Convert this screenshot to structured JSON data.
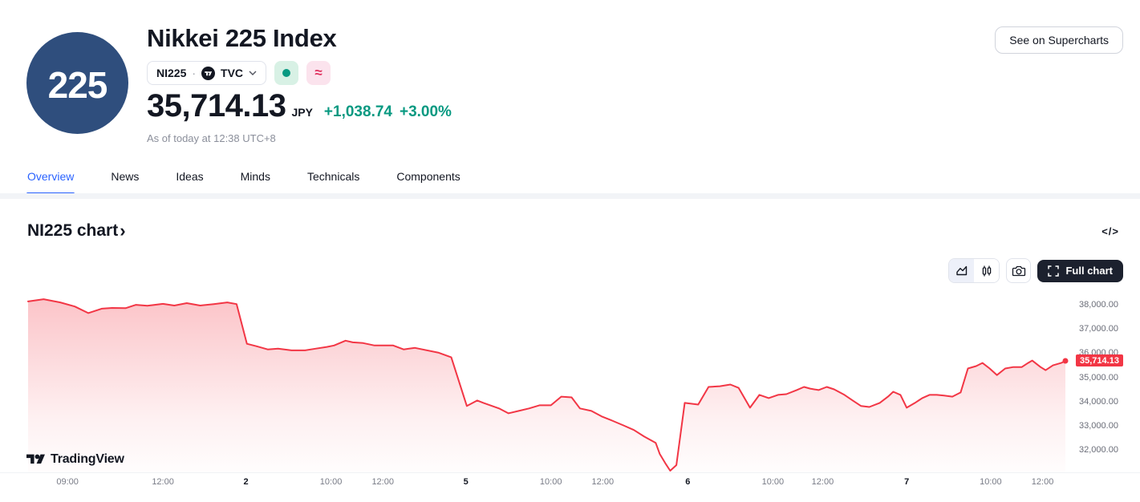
{
  "header": {
    "logo_text": "225",
    "title": "Nikkei 225 Index",
    "symbol": "NI225",
    "separator": "·",
    "exchange": "TVC",
    "similar_symbol": "≈",
    "price": "35,714.13",
    "currency": "JPY",
    "change_abs": "+1,038.74",
    "change_pct": "+3.00%",
    "as_of": "As of today at 12:38 UTC+8",
    "supercharts_button": "See on Supercharts"
  },
  "tabs": [
    {
      "label": "Overview",
      "active": true
    },
    {
      "label": "News",
      "active": false
    },
    {
      "label": "Ideas",
      "active": false
    },
    {
      "label": "Minds",
      "active": false
    },
    {
      "label": "Technicals",
      "active": false
    },
    {
      "label": "Components",
      "active": false
    }
  ],
  "chart_section": {
    "title": "NI225 chart",
    "chevron": "›",
    "embed_icon": "</>",
    "full_chart_button": "Full chart",
    "attribution": "TradingView"
  },
  "colors": {
    "accent_blue": "#2962ff",
    "up_green": "#089981",
    "down_red": "#f23645",
    "logo_navy": "#2f4e7d",
    "text_primary": "#131722",
    "text_secondary": "#787b86",
    "border": "#e0e3eb"
  },
  "chart_data": {
    "type": "area",
    "title": "NI225 chart",
    "symbol": "NI225",
    "xlabel": "",
    "ylabel": "",
    "grid": false,
    "legend": "none",
    "y_axis_side": "right",
    "line_color": "#f23645",
    "current_price": 35714.13,
    "current_price_label": "35,714.13",
    "ylim": [
      31100,
      38400
    ],
    "y_ticks": [
      {
        "value": 38000,
        "label": "38,000.00"
      },
      {
        "value": 37000,
        "label": "37,000.00"
      },
      {
        "value": 36000,
        "label": "36,000.00"
      },
      {
        "value": 35000,
        "label": "35,000.00"
      },
      {
        "value": 34000,
        "label": "34,000.00"
      },
      {
        "value": 33000,
        "label": "33,000.00"
      },
      {
        "value": 32000,
        "label": "32,000.00"
      }
    ],
    "x_ticks": [
      {
        "label": "09:00",
        "pos": 3.8,
        "day": false
      },
      {
        "label": "12:00",
        "pos": 13.0,
        "day": false
      },
      {
        "label": "2",
        "pos": 21.0,
        "day": true
      },
      {
        "label": "10:00",
        "pos": 29.2,
        "day": false
      },
      {
        "label": "12:00",
        "pos": 34.2,
        "day": false
      },
      {
        "label": "5",
        "pos": 42.2,
        "day": true
      },
      {
        "label": "10:00",
        "pos": 50.4,
        "day": false
      },
      {
        "label": "12:00",
        "pos": 55.4,
        "day": false
      },
      {
        "label": "6",
        "pos": 63.6,
        "day": true
      },
      {
        "label": "10:00",
        "pos": 71.8,
        "day": false
      },
      {
        "label": "12:00",
        "pos": 76.6,
        "day": false
      },
      {
        "label": "7",
        "pos": 84.7,
        "day": true
      },
      {
        "label": "10:00",
        "pos": 92.8,
        "day": false
      },
      {
        "label": "12:00",
        "pos": 97.8,
        "day": false
      }
    ],
    "points": [
      [
        0,
        38170
      ],
      [
        1.5,
        38260
      ],
      [
        3.1,
        38130
      ],
      [
        4.5,
        37960
      ],
      [
        5.8,
        37690
      ],
      [
        7.1,
        37870
      ],
      [
        8.1,
        37900
      ],
      [
        9.4,
        37890
      ],
      [
        10.4,
        38030
      ],
      [
        11.5,
        37990
      ],
      [
        13,
        38070
      ],
      [
        14.1,
        38000
      ],
      [
        15.3,
        38100
      ],
      [
        16.6,
        38000
      ],
      [
        17.9,
        38060
      ],
      [
        19.2,
        38130
      ],
      [
        20.1,
        38060
      ],
      [
        21.1,
        36420
      ],
      [
        22,
        36320
      ],
      [
        23.1,
        36190
      ],
      [
        24.1,
        36220
      ],
      [
        25.4,
        36150
      ],
      [
        26.7,
        36150
      ],
      [
        27.7,
        36220
      ],
      [
        28.8,
        36290
      ],
      [
        29.5,
        36350
      ],
      [
        30.6,
        36550
      ],
      [
        31.3,
        36480
      ],
      [
        32.3,
        36450
      ],
      [
        33.4,
        36350
      ],
      [
        35.2,
        36350
      ],
      [
        36.2,
        36190
      ],
      [
        37.3,
        36250
      ],
      [
        39.6,
        36050
      ],
      [
        40.8,
        35860
      ],
      [
        42.3,
        33850
      ],
      [
        43.3,
        34080
      ],
      [
        43.9,
        33980
      ],
      [
        45.4,
        33750
      ],
      [
        46.3,
        33550
      ],
      [
        47.3,
        33650
      ],
      [
        48.3,
        33750
      ],
      [
        49.3,
        33880
      ],
      [
        50.4,
        33880
      ],
      [
        51.4,
        34240
      ],
      [
        52.4,
        34210
      ],
      [
        53.2,
        33750
      ],
      [
        54.3,
        33650
      ],
      [
        55.3,
        33420
      ],
      [
        56.3,
        33250
      ],
      [
        57.4,
        33050
      ],
      [
        58.4,
        32860
      ],
      [
        59.4,
        32590
      ],
      [
        60.5,
        32330
      ],
      [
        60.9,
        31870
      ],
      [
        61.5,
        31440
      ],
      [
        61.9,
        31180
      ],
      [
        62.5,
        31410
      ],
      [
        63.3,
        33980
      ],
      [
        64.6,
        33910
      ],
      [
        65.6,
        34640
      ],
      [
        66.7,
        34670
      ],
      [
        67.7,
        34740
      ],
      [
        68.5,
        34600
      ],
      [
        69.6,
        33780
      ],
      [
        70.5,
        34310
      ],
      [
        71.4,
        34180
      ],
      [
        72.3,
        34310
      ],
      [
        73.1,
        34340
      ],
      [
        74.1,
        34510
      ],
      [
        74.8,
        34640
      ],
      [
        75.4,
        34570
      ],
      [
        76.2,
        34510
      ],
      [
        77,
        34640
      ],
      [
        77.7,
        34540
      ],
      [
        78.7,
        34310
      ],
      [
        79.5,
        34080
      ],
      [
        80.3,
        33850
      ],
      [
        81.1,
        33810
      ],
      [
        82.1,
        33980
      ],
      [
        82.9,
        34240
      ],
      [
        83.4,
        34440
      ],
      [
        84.1,
        34310
      ],
      [
        84.7,
        33780
      ],
      [
        85.5,
        33980
      ],
      [
        86.2,
        34180
      ],
      [
        86.9,
        34310
      ],
      [
        87.6,
        34310
      ],
      [
        88.3,
        34280
      ],
      [
        89.1,
        34240
      ],
      [
        89.9,
        34410
      ],
      [
        90.6,
        35400
      ],
      [
        91.4,
        35500
      ],
      [
        92,
        35630
      ],
      [
        92.7,
        35400
      ],
      [
        93.4,
        35130
      ],
      [
        94.2,
        35400
      ],
      [
        95,
        35460
      ],
      [
        95.8,
        35460
      ],
      [
        96.4,
        35630
      ],
      [
        96.8,
        35730
      ],
      [
        97.6,
        35460
      ],
      [
        98.1,
        35330
      ],
      [
        98.8,
        35530
      ],
      [
        99.6,
        35630
      ],
      [
        100,
        35714.13
      ]
    ]
  }
}
